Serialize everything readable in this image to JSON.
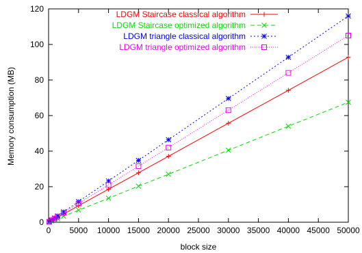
{
  "chart_data": {
    "type": "line",
    "xlabel": "block size",
    "ylabel": "Memory consumption (MB)",
    "xlim": [
      0,
      50000
    ],
    "ylim": [
      0,
      120
    ],
    "xticks": [
      "0",
      "5000",
      "10000",
      "15000",
      "20000",
      "25000",
      "30000",
      "35000",
      "40000",
      "45000",
      "50000"
    ],
    "yticks": [
      "0",
      "20",
      "40",
      "60",
      "80",
      "100",
      "120"
    ],
    "grid": false,
    "legend_position": "top-right",
    "x": [
      100,
      500,
      1000,
      1500,
      2500,
      5000,
      10000,
      15000,
      20000,
      30000,
      40000,
      50000
    ],
    "series": [
      {
        "name": "LDGM Staircase classical algorithm",
        "color": "#ff0000",
        "marker": "plus",
        "dash": "",
        "values": [
          0.2,
          0.9,
          1.9,
          2.8,
          4.6,
          9.3,
          18.6,
          27.8,
          37.1,
          55.7,
          74.2,
          92.8
        ]
      },
      {
        "name": "LDGM Staircase optimized algorithm",
        "color": "#00dd00",
        "marker": "cross",
        "dash": "6,4",
        "values": [
          0.1,
          0.7,
          1.4,
          2.0,
          3.4,
          6.8,
          13.5,
          20.3,
          27.0,
          40.5,
          54.0,
          67.5
        ]
      },
      {
        "name": "LDGM triangle classical algorithm",
        "color": "#0000ee",
        "marker": "star",
        "dash": "2,3",
        "values": [
          0.2,
          1.2,
          2.3,
          3.5,
          5.8,
          11.6,
          23.2,
          34.8,
          46.4,
          69.6,
          92.8,
          116
        ]
      },
      {
        "name": "LDGM triangle optimized algorithm",
        "color": "#ee00ee",
        "marker": "square",
        "dash": "1,2",
        "values": [
          0.2,
          1.1,
          2.1,
          3.2,
          5.3,
          10.5,
          21.0,
          31.5,
          42.0,
          63.0,
          84.0,
          105
        ]
      }
    ]
  }
}
